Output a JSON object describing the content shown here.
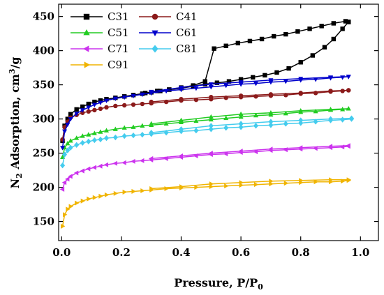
{
  "chart_data": {
    "type": "line",
    "xlabel": "Pressure, P/P",
    "xlabel_sub": "0",
    "ylabel_parts": [
      "N",
      "2",
      " Adsorption, cm",
      "3",
      "/g"
    ],
    "xlim": [
      -0.01,
      1.06
    ],
    "ylim": [
      122,
      468
    ],
    "xticks": [
      0.0,
      0.2,
      0.4,
      0.6,
      0.8,
      1.0
    ],
    "xtick_labels": [
      "0.0",
      "0.2",
      "0.4",
      "0.6",
      "0.8",
      "1.0"
    ],
    "yticks": [
      150,
      200,
      250,
      300,
      350,
      400,
      450
    ],
    "ytick_labels": [
      "150",
      "200",
      "250",
      "300",
      "350",
      "400",
      "450"
    ],
    "grid": false,
    "legend_position": "top-left",
    "series": [
      {
        "name": "C31",
        "color": "#000000",
        "marker": "square",
        "adsorption": {
          "x": [
            0.003,
            0.01,
            0.02,
            0.03,
            0.05,
            0.07,
            0.09,
            0.11,
            0.13,
            0.15,
            0.18,
            0.21,
            0.24,
            0.27,
            0.3,
            0.33,
            0.36,
            0.4,
            0.44,
            0.48,
            0.52,
            0.56,
            0.6,
            0.64,
            0.68,
            0.72,
            0.76,
            0.8,
            0.84,
            0.88,
            0.91,
            0.94,
            0.96
          ],
          "y": [
            268,
            290,
            300,
            307,
            314,
            318,
            322,
            325,
            327,
            329,
            331,
            333,
            335,
            337,
            339,
            341,
            343,
            345,
            348,
            351,
            353,
            355,
            358,
            361,
            364,
            368,
            374,
            383,
            393,
            405,
            417,
            432,
            442
          ]
        },
        "desorption": {
          "x": [
            0.96,
            0.95,
            0.91,
            0.87,
            0.83,
            0.79,
            0.75,
            0.71,
            0.67,
            0.63,
            0.59,
            0.55,
            0.51,
            0.48,
            0.44,
            0.4,
            0.36,
            0.32,
            0.28
          ],
          "y": [
            442,
            443,
            440,
            436,
            432,
            428,
            424,
            421,
            417,
            414,
            411,
            407,
            403,
            355,
            349,
            346,
            343,
            341,
            338
          ]
        }
      },
      {
        "name": "C41",
        "color": "#8b1a1a",
        "marker": "circle",
        "adsorption": {
          "x": [
            0.003,
            0.01,
            0.02,
            0.03,
            0.05,
            0.07,
            0.09,
            0.11,
            0.13,
            0.15,
            0.18,
            0.21,
            0.24,
            0.27,
            0.3,
            0.35,
            0.4,
            0.45,
            0.5,
            0.55,
            0.6,
            0.65,
            0.7,
            0.75,
            0.8,
            0.85,
            0.9,
            0.94,
            0.96
          ],
          "y": [
            270,
            288,
            296,
            302,
            306,
            309,
            311,
            313,
            315,
            317,
            319,
            320,
            321,
            322,
            323,
            325,
            327,
            328,
            329,
            331,
            332,
            333,
            334,
            335,
            337,
            338,
            340,
            341,
            342
          ]
        },
        "desorption": {
          "x": [
            0.96,
            0.9,
            0.8,
            0.7,
            0.6,
            0.5,
            0.4,
            0.3
          ],
          "y": [
            342,
            341,
            338,
            336,
            334,
            332,
            329,
            325
          ]
        }
      },
      {
        "name": "C51",
        "color": "#22cc22",
        "marker": "triangle-up",
        "adsorption": {
          "x": [
            0.003,
            0.01,
            0.02,
            0.03,
            0.05,
            0.07,
            0.09,
            0.11,
            0.13,
            0.15,
            0.18,
            0.21,
            0.24,
            0.27,
            0.3,
            0.35,
            0.4,
            0.45,
            0.5,
            0.55,
            0.6,
            0.65,
            0.7,
            0.75,
            0.8,
            0.85,
            0.9,
            0.94,
            0.96
          ],
          "y": [
            244,
            258,
            264,
            268,
            272,
            275,
            277,
            279,
            281,
            283,
            285,
            287,
            288,
            290,
            291,
            293,
            295,
            297,
            299,
            301,
            303,
            305,
            306,
            308,
            310,
            311,
            313,
            314,
            315
          ]
        },
        "desorption": {
          "x": [
            0.96,
            0.9,
            0.8,
            0.7,
            0.6,
            0.5,
            0.4,
            0.3
          ],
          "y": [
            315,
            314,
            312,
            309,
            307,
            303,
            298,
            293
          ]
        }
      },
      {
        "name": "C61",
        "color": "#0000cc",
        "marker": "triangle-down",
        "adsorption": {
          "x": [
            0.003,
            0.01,
            0.02,
            0.03,
            0.05,
            0.07,
            0.09,
            0.11,
            0.13,
            0.15,
            0.18,
            0.21,
            0.24,
            0.27,
            0.3,
            0.35,
            0.4,
            0.45,
            0.5,
            0.55,
            0.6,
            0.65,
            0.7,
            0.75,
            0.8,
            0.85,
            0.9,
            0.94,
            0.96
          ],
          "y": [
            258,
            282,
            292,
            300,
            308,
            313,
            317,
            321,
            324,
            327,
            330,
            332,
            334,
            336,
            338,
            341,
            343,
            345,
            347,
            349,
            351,
            352,
            354,
            355,
            357,
            358,
            360,
            361,
            362
          ]
        },
        "desorption": {
          "x": [
            0.96,
            0.9,
            0.8,
            0.7,
            0.6,
            0.5,
            0.4,
            0.3
          ],
          "y": [
            362,
            361,
            359,
            357,
            354,
            351,
            346,
            340
          ]
        }
      },
      {
        "name": "C71",
        "color": "#cc33ee",
        "marker": "triangle-left",
        "adsorption": {
          "x": [
            0.003,
            0.01,
            0.02,
            0.03,
            0.05,
            0.07,
            0.09,
            0.11,
            0.13,
            0.15,
            0.18,
            0.21,
            0.24,
            0.27,
            0.3,
            0.35,
            0.4,
            0.45,
            0.5,
            0.55,
            0.6,
            0.65,
            0.7,
            0.75,
            0.8,
            0.85,
            0.9,
            0.94,
            0.96
          ],
          "y": [
            197,
            207,
            212,
            216,
            221,
            224,
            227,
            229,
            231,
            233,
            235,
            236,
            238,
            239,
            240,
            242,
            244,
            246,
            248,
            249,
            251,
            252,
            254,
            255,
            256,
            257,
            258,
            259,
            260
          ]
        },
        "desorption": {
          "x": [
            0.96,
            0.9,
            0.8,
            0.7,
            0.6,
            0.5,
            0.4,
            0.3
          ],
          "y": [
            261,
            260,
            258,
            256,
            253,
            250,
            246,
            242
          ]
        }
      },
      {
        "name": "C81",
        "color": "#44ccee",
        "marker": "diamond",
        "adsorption": {
          "x": [
            0.003,
            0.01,
            0.02,
            0.03,
            0.05,
            0.07,
            0.09,
            0.11,
            0.13,
            0.15,
            0.18,
            0.21,
            0.24,
            0.27,
            0.3,
            0.35,
            0.4,
            0.45,
            0.5,
            0.55,
            0.6,
            0.65,
            0.7,
            0.75,
            0.8,
            0.85,
            0.9,
            0.94,
            0.97
          ],
          "y": [
            232,
            248,
            254,
            258,
            262,
            265,
            267,
            269,
            270,
            272,
            273,
            275,
            276,
            277,
            278,
            280,
            282,
            283,
            285,
            287,
            288,
            290,
            291,
            293,
            294,
            296,
            298,
            299,
            300
          ]
        },
        "desorption": {
          "x": [
            0.97,
            0.9,
            0.8,
            0.7,
            0.6,
            0.5,
            0.4,
            0.3
          ],
          "y": [
            301,
            300,
            298,
            296,
            293,
            290,
            285,
            280
          ]
        }
      },
      {
        "name": "C91",
        "color": "#f0b400",
        "marker": "triangle-right",
        "adsorption": {
          "x": [
            0.003,
            0.01,
            0.02,
            0.03,
            0.05,
            0.07,
            0.09,
            0.11,
            0.13,
            0.15,
            0.18,
            0.21,
            0.24,
            0.27,
            0.3,
            0.35,
            0.4,
            0.45,
            0.5,
            0.55,
            0.6,
            0.65,
            0.7,
            0.75,
            0.8,
            0.85,
            0.9,
            0.94,
            0.96
          ],
          "y": [
            143,
            160,
            168,
            172,
            177,
            180,
            183,
            185,
            187,
            189,
            191,
            193,
            194,
            195,
            196,
            198,
            199,
            200,
            201,
            202,
            203,
            204,
            205,
            206,
            207,
            208,
            208,
            209,
            210
          ]
        },
        "desorption": {
          "x": [
            0.96,
            0.9,
            0.8,
            0.7,
            0.6,
            0.5,
            0.4,
            0.3
          ],
          "y": [
            211,
            211,
            210,
            209,
            207,
            205,
            201,
            198
          ]
        }
      }
    ]
  }
}
